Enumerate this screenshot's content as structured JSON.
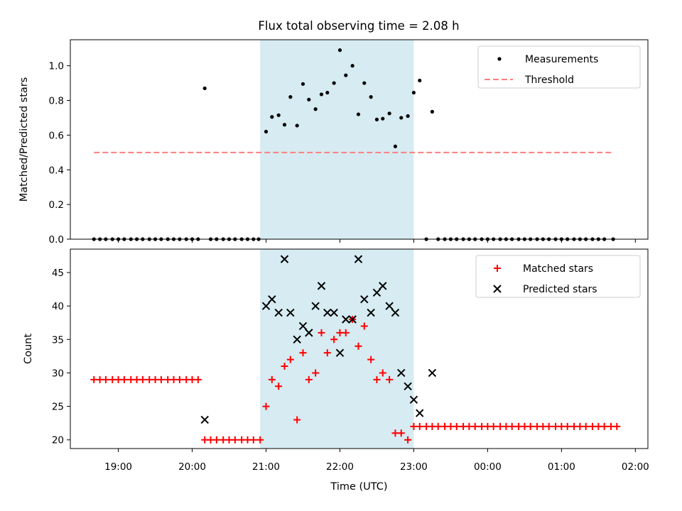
{
  "title": "Flux total observing time = 2.08 h",
  "colors": {
    "measurement": "#000000",
    "threshold": "#ff7f7f",
    "matched": "#ff0000",
    "predicted": "#000000",
    "shade": "#add8e6"
  },
  "chart_data": [
    {
      "type": "scatter",
      "panel": "top",
      "xlabel": "",
      "ylabel": "Matched/Predicted stars",
      "xlim": [
        18.35,
        26.17
      ],
      "ylim": [
        0,
        1.15
      ],
      "yticks": [
        0.0,
        0.2,
        0.4,
        0.6,
        0.8,
        1.0
      ],
      "ytick_labels": [
        "0.0",
        "0.2",
        "0.4",
        "0.6",
        "0.8",
        "1.0"
      ],
      "shaded_span": [
        20.92,
        23.0
      ],
      "legend": {
        "position": "upper right",
        "items": [
          "Measurements",
          "Threshold"
        ]
      },
      "threshold": {
        "name": "Threshold",
        "value": 0.5,
        "x_range": [
          18.67,
          25.7
        ]
      },
      "series": [
        {
          "name": "Measurements",
          "points": [
            [
              18.67,
              0
            ],
            [
              18.75,
              0
            ],
            [
              18.83,
              0
            ],
            [
              18.92,
              0
            ],
            [
              19.0,
              0
            ],
            [
              19.08,
              0
            ],
            [
              19.17,
              0
            ],
            [
              19.25,
              0
            ],
            [
              19.33,
              0
            ],
            [
              19.42,
              0
            ],
            [
              19.5,
              0
            ],
            [
              19.58,
              0
            ],
            [
              19.67,
              0
            ],
            [
              19.75,
              0
            ],
            [
              19.83,
              0
            ],
            [
              19.92,
              0
            ],
            [
              20.0,
              0
            ],
            [
              20.08,
              0
            ],
            [
              20.17,
              0.87
            ],
            [
              20.25,
              0
            ],
            [
              20.33,
              0
            ],
            [
              20.42,
              0
            ],
            [
              20.5,
              0
            ],
            [
              20.58,
              0
            ],
            [
              20.67,
              0
            ],
            [
              20.75,
              0
            ],
            [
              20.83,
              0
            ],
            [
              20.9,
              0
            ],
            [
              21.0,
              0.62
            ],
            [
              21.08,
              0.705
            ],
            [
              21.17,
              0.715
            ],
            [
              21.25,
              0.66
            ],
            [
              21.33,
              0.82
            ],
            [
              21.42,
              0.655
            ],
            [
              21.5,
              0.895
            ],
            [
              21.58,
              0.805
            ],
            [
              21.67,
              0.75
            ],
            [
              21.75,
              0.835
            ],
            [
              21.83,
              0.845
            ],
            [
              21.92,
              0.9
            ],
            [
              22.0,
              1.09
            ],
            [
              22.08,
              0.945
            ],
            [
              22.17,
              1.0
            ],
            [
              22.25,
              0.72
            ],
            [
              22.33,
              0.9
            ],
            [
              22.42,
              0.82
            ],
            [
              22.5,
              0.69
            ],
            [
              22.58,
              0.695
            ],
            [
              22.67,
              0.725
            ],
            [
              22.75,
              0.535
            ],
            [
              22.83,
              0.7
            ],
            [
              22.92,
              0.71
            ],
            [
              23.0,
              0.845
            ],
            [
              23.08,
              0.915
            ],
            [
              23.17,
              0
            ],
            [
              23.25,
              0.735
            ],
            [
              23.33,
              0
            ],
            [
              23.42,
              0
            ],
            [
              23.5,
              0
            ],
            [
              23.58,
              0
            ],
            [
              23.67,
              0
            ],
            [
              23.75,
              0
            ],
            [
              23.83,
              0
            ],
            [
              23.92,
              0
            ],
            [
              24.0,
              0
            ],
            [
              24.08,
              0
            ],
            [
              24.17,
              0
            ],
            [
              24.25,
              0
            ],
            [
              24.33,
              0
            ],
            [
              24.42,
              0
            ],
            [
              24.5,
              0
            ],
            [
              24.58,
              0
            ],
            [
              24.67,
              0
            ],
            [
              24.75,
              0
            ],
            [
              24.83,
              0
            ],
            [
              24.92,
              0
            ],
            [
              25.0,
              0
            ],
            [
              25.08,
              0
            ],
            [
              25.17,
              0
            ],
            [
              25.25,
              0
            ],
            [
              25.33,
              0
            ],
            [
              25.42,
              0
            ],
            [
              25.5,
              0
            ],
            [
              25.58,
              0
            ],
            [
              25.7,
              0
            ]
          ]
        }
      ]
    },
    {
      "type": "scatter",
      "panel": "bottom",
      "xlabel": "Time (UTC)",
      "ylabel": "Count",
      "xlim": [
        18.35,
        26.17
      ],
      "ylim": [
        18.7,
        48.5
      ],
      "xticks": [
        19,
        20,
        21,
        22,
        23,
        24,
        25,
        26
      ],
      "xtick_labels": [
        "19:00",
        "20:00",
        "21:00",
        "22:00",
        "23:00",
        "00:00",
        "01:00",
        "02:00"
      ],
      "yticks": [
        20,
        25,
        30,
        35,
        40,
        45
      ],
      "ytick_labels": [
        "20",
        "25",
        "30",
        "35",
        "40",
        "45"
      ],
      "shaded_span": [
        20.92,
        23.0
      ],
      "legend": {
        "position": "upper right",
        "items": [
          "Matched stars",
          "Predicted stars"
        ]
      },
      "series": [
        {
          "name": "Matched stars",
          "marker": "+",
          "points": [
            [
              18.67,
              29
            ],
            [
              18.75,
              29
            ],
            [
              18.83,
              29
            ],
            [
              18.92,
              29
            ],
            [
              19.0,
              29
            ],
            [
              19.08,
              29
            ],
            [
              19.17,
              29
            ],
            [
              19.25,
              29
            ],
            [
              19.33,
              29
            ],
            [
              19.42,
              29
            ],
            [
              19.5,
              29
            ],
            [
              19.58,
              29
            ],
            [
              19.67,
              29
            ],
            [
              19.75,
              29
            ],
            [
              19.83,
              29
            ],
            [
              19.92,
              29
            ],
            [
              20.0,
              29
            ],
            [
              20.08,
              29
            ],
            [
              20.17,
              20
            ],
            [
              20.25,
              20
            ],
            [
              20.33,
              20
            ],
            [
              20.42,
              20
            ],
            [
              20.5,
              20
            ],
            [
              20.58,
              20
            ],
            [
              20.67,
              20
            ],
            [
              20.75,
              20
            ],
            [
              20.83,
              20
            ],
            [
              20.92,
              20
            ],
            [
              21.0,
              25
            ],
            [
              21.08,
              29
            ],
            [
              21.17,
              28
            ],
            [
              21.25,
              31
            ],
            [
              21.33,
              32
            ],
            [
              21.42,
              23
            ],
            [
              21.5,
              33
            ],
            [
              21.58,
              29
            ],
            [
              21.67,
              30
            ],
            [
              21.75,
              36
            ],
            [
              21.83,
              33
            ],
            [
              21.92,
              35
            ],
            [
              22.0,
              36
            ],
            [
              22.08,
              36
            ],
            [
              22.17,
              38
            ],
            [
              22.25,
              34
            ],
            [
              22.33,
              37
            ],
            [
              22.42,
              32
            ],
            [
              22.5,
              29
            ],
            [
              22.58,
              30
            ],
            [
              22.67,
              29
            ],
            [
              22.75,
              21
            ],
            [
              22.83,
              21
            ],
            [
              22.92,
              20
            ],
            [
              23.0,
              22
            ],
            [
              23.08,
              22
            ],
            [
              23.17,
              22
            ],
            [
              23.25,
              22
            ],
            [
              23.33,
              22
            ],
            [
              23.42,
              22
            ],
            [
              23.5,
              22
            ],
            [
              23.58,
              22
            ],
            [
              23.67,
              22
            ],
            [
              23.75,
              22
            ],
            [
              23.83,
              22
            ],
            [
              23.92,
              22
            ],
            [
              24.0,
              22
            ],
            [
              24.08,
              22
            ],
            [
              24.17,
              22
            ],
            [
              24.25,
              22
            ],
            [
              24.33,
              22
            ],
            [
              24.42,
              22
            ],
            [
              24.5,
              22
            ],
            [
              24.58,
              22
            ],
            [
              24.67,
              22
            ],
            [
              24.75,
              22
            ],
            [
              24.83,
              22
            ],
            [
              24.92,
              22
            ],
            [
              25.0,
              22
            ],
            [
              25.08,
              22
            ],
            [
              25.17,
              22
            ],
            [
              25.25,
              22
            ],
            [
              25.33,
              22
            ],
            [
              25.42,
              22
            ],
            [
              25.5,
              22
            ],
            [
              25.58,
              22
            ],
            [
              25.67,
              22
            ],
            [
              25.75,
              22
            ]
          ]
        },
        {
          "name": "Predicted stars",
          "marker": "x",
          "points": [
            [
              20.17,
              23
            ],
            [
              21.0,
              40
            ],
            [
              21.08,
              41
            ],
            [
              21.17,
              39
            ],
            [
              21.25,
              47
            ],
            [
              21.33,
              39
            ],
            [
              21.42,
              35
            ],
            [
              21.5,
              37
            ],
            [
              21.58,
              36
            ],
            [
              21.67,
              40
            ],
            [
              21.75,
              43
            ],
            [
              21.83,
              39
            ],
            [
              21.92,
              39
            ],
            [
              22.0,
              33
            ],
            [
              22.08,
              38
            ],
            [
              22.17,
              38
            ],
            [
              22.25,
              47
            ],
            [
              22.33,
              41
            ],
            [
              22.42,
              39
            ],
            [
              22.5,
              42
            ],
            [
              22.58,
              43
            ],
            [
              22.67,
              40
            ],
            [
              22.75,
              39
            ],
            [
              22.83,
              30
            ],
            [
              22.92,
              28
            ],
            [
              23.0,
              26
            ],
            [
              23.08,
              24
            ],
            [
              23.25,
              30
            ]
          ]
        }
      ]
    }
  ]
}
